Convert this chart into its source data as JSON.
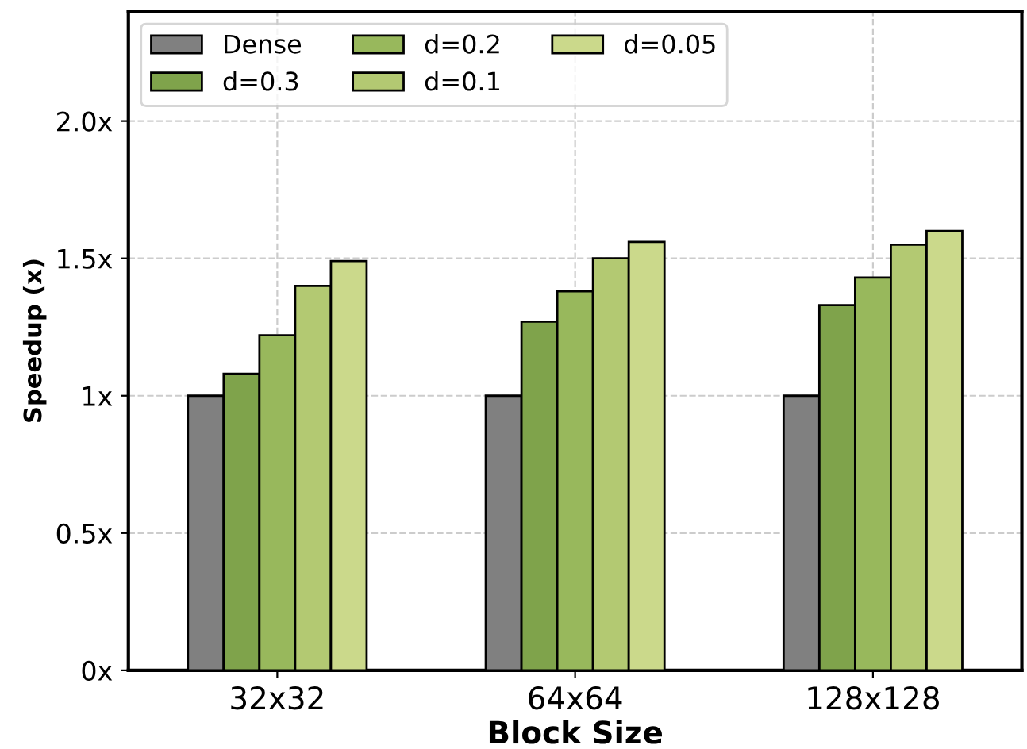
{
  "chart_data": {
    "type": "bar",
    "xlabel": "Block Size",
    "ylabel": "Speedup (x)",
    "categories": [
      "32x32",
      "64x64",
      "128x128"
    ],
    "series": [
      {
        "name": "Dense",
        "color": "#808080",
        "values": [
          1.0,
          1.0,
          1.0
        ]
      },
      {
        "name": "d=0.3",
        "color": "#7fa34b",
        "values": [
          1.08,
          1.27,
          1.33
        ]
      },
      {
        "name": "d=0.2",
        "color": "#98b85c",
        "values": [
          1.22,
          1.38,
          1.43
        ]
      },
      {
        "name": "d=0.1",
        "color": "#b3c972",
        "values": [
          1.4,
          1.5,
          1.55
        ]
      },
      {
        "name": "d=0.05",
        "color": "#cbd98b",
        "values": [
          1.49,
          1.56,
          1.6
        ]
      }
    ],
    "ylim": [
      0,
      2.4
    ],
    "yticks": [
      {
        "value": 0,
        "label": "0x"
      },
      {
        "value": 0.5,
        "label": "0.5x"
      },
      {
        "value": 1,
        "label": "1x"
      },
      {
        "value": 1.5,
        "label": "1.5x"
      },
      {
        "value": 2.0,
        "label": "2.0x"
      }
    ],
    "grid": true,
    "legend": "top left"
  }
}
